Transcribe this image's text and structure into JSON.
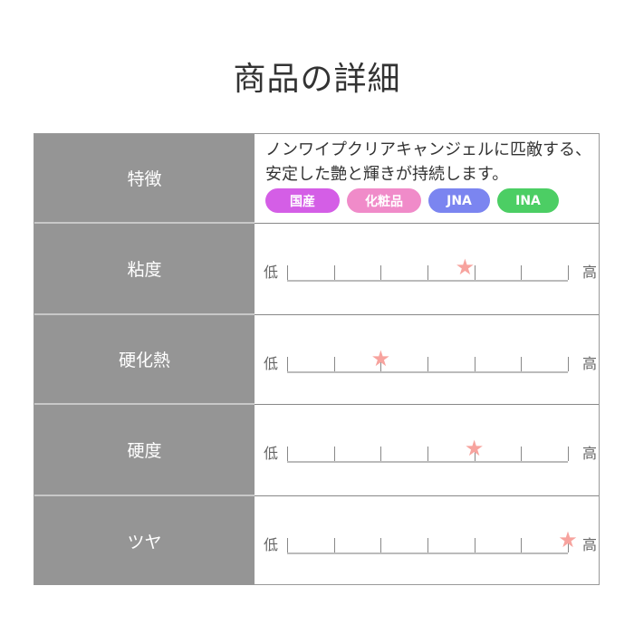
{
  "title": "商品の詳細",
  "features": {
    "label": "特徴",
    "description": "ノンワイプクリアキャンジェルに匹敵する、安定した艶と輝きが持続します。",
    "badges": [
      {
        "label": "国産",
        "color": "#d45ee6"
      },
      {
        "label": "化粧品",
        "color": "#f08bc9"
      },
      {
        "label": "JNA",
        "color": "#7b85f0"
      },
      {
        "label": "INA",
        "color": "#4cce64"
      }
    ]
  },
  "scale_low": "低",
  "scale_high": "高",
  "scale_max": 6,
  "star_color": "#f7a39e",
  "ratings": [
    {
      "label": "粘度",
      "value": 3.8
    },
    {
      "label": "硬化熱",
      "value": 2
    },
    {
      "label": "硬度",
      "value": 4
    },
    {
      "label": "ツヤ",
      "value": 6
    }
  ]
}
